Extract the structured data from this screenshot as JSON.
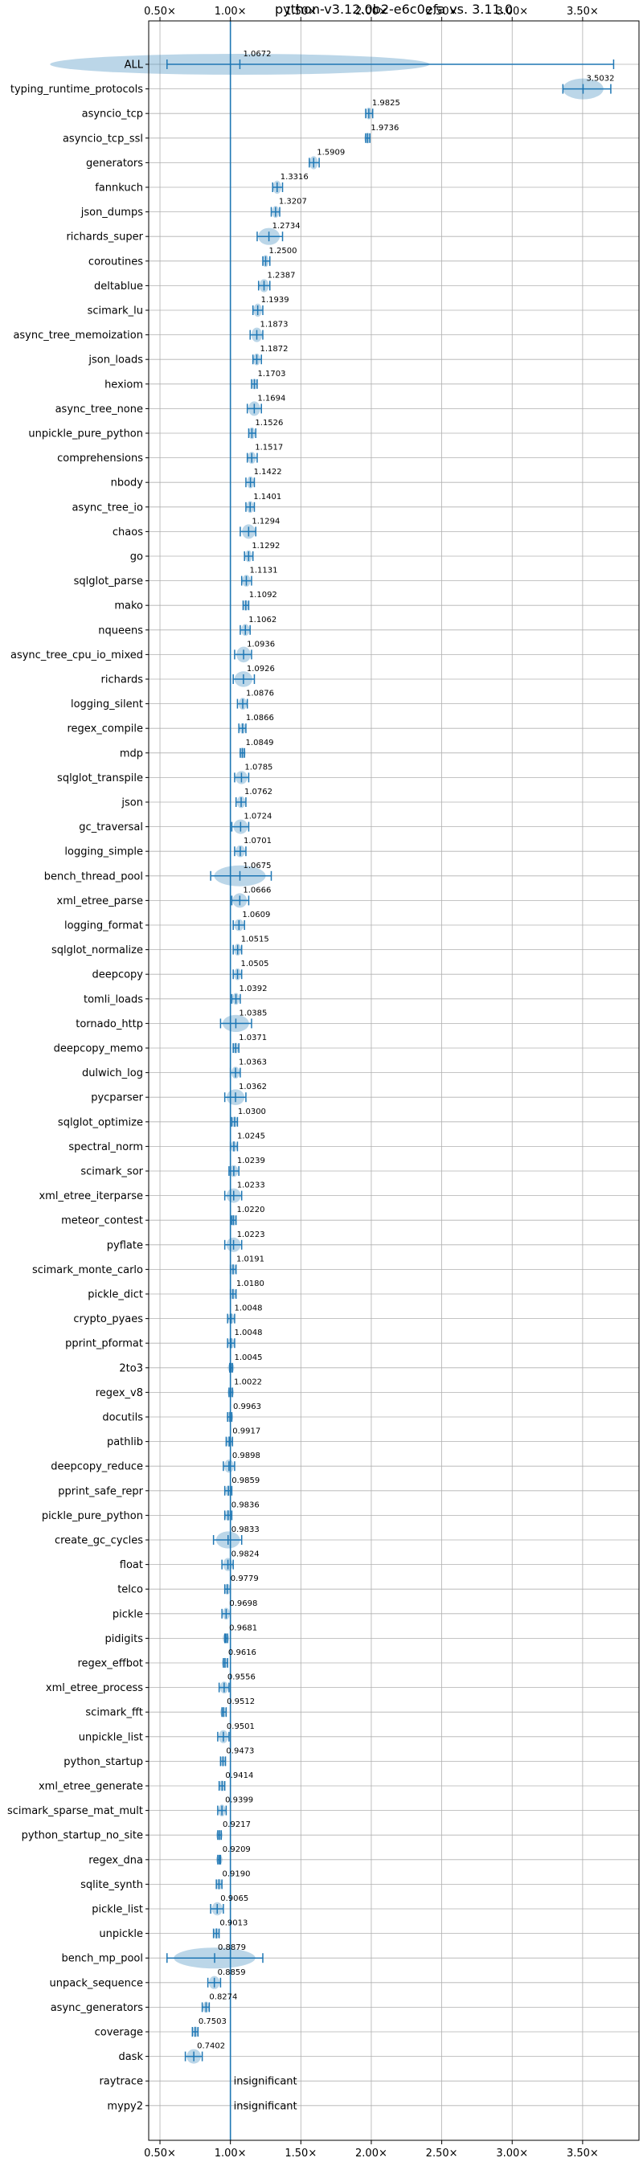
{
  "chart_data": {
    "type": "violin",
    "title": "python-v3.12.0b2-e6c0efa vs. 3.11.0",
    "xlim": [
      0.42,
      3.9
    ],
    "x_ticks": [
      0.5,
      1.0,
      1.5,
      2.0,
      2.5,
      3.0,
      3.5
    ],
    "x_tick_labels": [
      "0.50×",
      "1.00×",
      "1.50×",
      "2.00×",
      "2.50×",
      "3.00×",
      "3.50×"
    ],
    "reference": 1.0,
    "grid": true,
    "benchmarks": [
      {
        "name": "ALL",
        "value": 1.0672,
        "label": "1.0672",
        "low": 0.55,
        "high": 3.72,
        "spread": 0.12
      },
      {
        "name": "typing_runtime_protocols",
        "value": 3.5032,
        "label": "3.5032",
        "low": 3.36,
        "high": 3.7,
        "spread": 0.1
      },
      {
        "name": "asyncio_tcp",
        "value": 1.9825,
        "label": "1.9825",
        "low": 1.96,
        "high": 2.01,
        "spread": 0.03
      },
      {
        "name": "asyncio_tcp_ssl",
        "value": 1.9736,
        "label": "1.9736",
        "low": 1.96,
        "high": 1.99,
        "spread": 0.02
      },
      {
        "name": "generators",
        "value": 1.5909,
        "label": "1.5909",
        "low": 1.56,
        "high": 1.63,
        "spread": 0.04
      },
      {
        "name": "fannkuch",
        "value": 1.3316,
        "label": "1.3316",
        "low": 1.3,
        "high": 1.37,
        "spread": 0.04
      },
      {
        "name": "json_dumps",
        "value": 1.3207,
        "label": "1.3207",
        "low": 1.29,
        "high": 1.35,
        "spread": 0.03
      },
      {
        "name": "richards_super",
        "value": 1.2734,
        "label": "1.2734",
        "low": 1.19,
        "high": 1.37,
        "spread": 0.07
      },
      {
        "name": "coroutines",
        "value": 1.25,
        "label": "1.2500",
        "low": 1.23,
        "high": 1.28,
        "spread": 0.03
      },
      {
        "name": "deltablue",
        "value": 1.2387,
        "label": "1.2387",
        "low": 1.2,
        "high": 1.28,
        "spread": 0.04
      },
      {
        "name": "scimark_lu",
        "value": 1.1939,
        "label": "1.1939",
        "low": 1.16,
        "high": 1.23,
        "spread": 0.04
      },
      {
        "name": "async_tree_memoization",
        "value": 1.1873,
        "label": "1.1873",
        "low": 1.14,
        "high": 1.23,
        "spread": 0.05
      },
      {
        "name": "json_loads",
        "value": 1.1872,
        "label": "1.1872",
        "low": 1.16,
        "high": 1.22,
        "spread": 0.03
      },
      {
        "name": "hexiom",
        "value": 1.1703,
        "label": "1.1703",
        "low": 1.15,
        "high": 1.19,
        "spread": 0.02
      },
      {
        "name": "async_tree_none",
        "value": 1.1694,
        "label": "1.1694",
        "low": 1.12,
        "high": 1.22,
        "spread": 0.05
      },
      {
        "name": "unpickle_pure_python",
        "value": 1.1526,
        "label": "1.1526",
        "low": 1.13,
        "high": 1.18,
        "spread": 0.03
      },
      {
        "name": "comprehensions",
        "value": 1.1517,
        "label": "1.1517",
        "low": 1.12,
        "high": 1.19,
        "spread": 0.03
      },
      {
        "name": "nbody",
        "value": 1.1422,
        "label": "1.1422",
        "low": 1.11,
        "high": 1.17,
        "spread": 0.03
      },
      {
        "name": "async_tree_io",
        "value": 1.1401,
        "label": "1.1401",
        "low": 1.11,
        "high": 1.17,
        "spread": 0.03
      },
      {
        "name": "chaos",
        "value": 1.1294,
        "label": "1.1294",
        "low": 1.07,
        "high": 1.18,
        "spread": 0.05
      },
      {
        "name": "go",
        "value": 1.1292,
        "label": "1.1292",
        "low": 1.1,
        "high": 1.16,
        "spread": 0.03
      },
      {
        "name": "sqlglot_parse",
        "value": 1.1131,
        "label": "1.1131",
        "low": 1.08,
        "high": 1.15,
        "spread": 0.03
      },
      {
        "name": "mako",
        "value": 1.1092,
        "label": "1.1092",
        "low": 1.09,
        "high": 1.13,
        "spread": 0.02
      },
      {
        "name": "nqueens",
        "value": 1.1062,
        "label": "1.1062",
        "low": 1.07,
        "high": 1.14,
        "spread": 0.03
      },
      {
        "name": "async_tree_cpu_io_mixed",
        "value": 1.0936,
        "label": "1.0936",
        "low": 1.03,
        "high": 1.15,
        "spread": 0.06
      },
      {
        "name": "richards",
        "value": 1.0926,
        "label": "1.0926",
        "low": 1.02,
        "high": 1.17,
        "spread": 0.06
      },
      {
        "name": "logging_silent",
        "value": 1.0876,
        "label": "1.0876",
        "low": 1.05,
        "high": 1.12,
        "spread": 0.03
      },
      {
        "name": "regex_compile",
        "value": 1.0866,
        "label": "1.0866",
        "low": 1.06,
        "high": 1.11,
        "spread": 0.02
      },
      {
        "name": "mdp",
        "value": 1.0849,
        "label": "1.0849",
        "low": 1.07,
        "high": 1.1,
        "spread": 0.02
      },
      {
        "name": "sqlglot_transpile",
        "value": 1.0785,
        "label": "1.0785",
        "low": 1.03,
        "high": 1.13,
        "spread": 0.04
      },
      {
        "name": "json",
        "value": 1.0762,
        "label": "1.0762",
        "low": 1.04,
        "high": 1.11,
        "spread": 0.03
      },
      {
        "name": "gc_traversal",
        "value": 1.0724,
        "label": "1.0724",
        "low": 1.01,
        "high": 1.13,
        "spread": 0.05
      },
      {
        "name": "logging_simple",
        "value": 1.0701,
        "label": "1.0701",
        "low": 1.03,
        "high": 1.11,
        "spread": 0.03
      },
      {
        "name": "bench_thread_pool",
        "value": 1.0675,
        "label": "1.0675",
        "low": 0.86,
        "high": 1.29,
        "spread": 0.11
      },
      {
        "name": "xml_etree_parse",
        "value": 1.0666,
        "label": "1.0666",
        "low": 1.01,
        "high": 1.13,
        "spread": 0.05
      },
      {
        "name": "logging_format",
        "value": 1.0609,
        "label": "1.0609",
        "low": 1.02,
        "high": 1.1,
        "spread": 0.03
      },
      {
        "name": "sqlglot_normalize",
        "value": 1.0515,
        "label": "1.0515",
        "low": 1.02,
        "high": 1.08,
        "spread": 0.03
      },
      {
        "name": "deepcopy",
        "value": 1.0505,
        "label": "1.0505",
        "low": 1.02,
        "high": 1.08,
        "spread": 0.03
      },
      {
        "name": "tomli_loads",
        "value": 1.0392,
        "label": "1.0392",
        "low": 1.01,
        "high": 1.07,
        "spread": 0.03
      },
      {
        "name": "tornado_http",
        "value": 1.0385,
        "label": "1.0385",
        "low": 0.93,
        "high": 1.15,
        "spread": 0.07
      },
      {
        "name": "deepcopy_memo",
        "value": 1.0371,
        "label": "1.0371",
        "low": 1.02,
        "high": 1.06,
        "spread": 0.02
      },
      {
        "name": "dulwich_log",
        "value": 1.0363,
        "label": "1.0363",
        "low": 1.0,
        "high": 1.07,
        "spread": 0.03
      },
      {
        "name": "pycparser",
        "value": 1.0362,
        "label": "1.0362",
        "low": 0.96,
        "high": 1.11,
        "spread": 0.06
      },
      {
        "name": "sqlglot_optimize",
        "value": 1.03,
        "label": "1.0300",
        "low": 1.01,
        "high": 1.05,
        "spread": 0.02
      },
      {
        "name": "spectral_norm",
        "value": 1.0245,
        "label": "1.0245",
        "low": 1.0,
        "high": 1.05,
        "spread": 0.02
      },
      {
        "name": "scimark_sor",
        "value": 1.0239,
        "label": "1.0239",
        "low": 0.99,
        "high": 1.06,
        "spread": 0.03
      },
      {
        "name": "xml_etree_iterparse",
        "value": 1.0233,
        "label": "1.0233",
        "low": 0.96,
        "high": 1.08,
        "spread": 0.05
      },
      {
        "name": "meteor_contest",
        "value": 1.022,
        "label": "1.0220",
        "low": 1.01,
        "high": 1.04,
        "spread": 0.02
      },
      {
        "name": "pyflate",
        "value": 1.0223,
        "label": "1.0223",
        "low": 0.96,
        "high": 1.08,
        "spread": 0.05
      },
      {
        "name": "scimark_monte_carlo",
        "value": 1.0191,
        "label": "1.0191",
        "low": 1.0,
        "high": 1.04,
        "spread": 0.02
      },
      {
        "name": "pickle_dict",
        "value": 1.018,
        "label": "1.0180",
        "low": 1.0,
        "high": 1.04,
        "spread": 0.02
      },
      {
        "name": "crypto_pyaes",
        "value": 1.0048,
        "label": "1.0048",
        "low": 0.98,
        "high": 1.03,
        "spread": 0.02
      },
      {
        "name": "pprint_pformat",
        "value": 1.0048,
        "label": "1.0048",
        "low": 0.98,
        "high": 1.03,
        "spread": 0.02
      },
      {
        "name": "2to3",
        "value": 1.0045,
        "label": "1.0045",
        "low": 0.995,
        "high": 1.015,
        "spread": 0.01
      },
      {
        "name": "regex_v8",
        "value": 1.0022,
        "label": "1.0022",
        "low": 0.99,
        "high": 1.015,
        "spread": 0.01
      },
      {
        "name": "docutils",
        "value": 0.9963,
        "label": "0.9963",
        "low": 0.98,
        "high": 1.01,
        "spread": 0.02
      },
      {
        "name": "pathlib",
        "value": 0.9917,
        "label": "0.9917",
        "low": 0.97,
        "high": 1.015,
        "spread": 0.02
      },
      {
        "name": "deepcopy_reduce",
        "value": 0.9898,
        "label": "0.9898",
        "low": 0.95,
        "high": 1.03,
        "spread": 0.04
      },
      {
        "name": "pprint_safe_repr",
        "value": 0.9859,
        "label": "0.9859",
        "low": 0.96,
        "high": 1.01,
        "spread": 0.02
      },
      {
        "name": "pickle_pure_python",
        "value": 0.9836,
        "label": "0.9836",
        "low": 0.96,
        "high": 1.01,
        "spread": 0.02
      },
      {
        "name": "create_gc_cycles",
        "value": 0.9833,
        "label": "0.9833",
        "low": 0.88,
        "high": 1.08,
        "spread": 0.07
      },
      {
        "name": "float",
        "value": 0.9824,
        "label": "0.9824",
        "low": 0.94,
        "high": 1.02,
        "spread": 0.04
      },
      {
        "name": "telco",
        "value": 0.9779,
        "label": "0.9779",
        "low": 0.96,
        "high": 1.0,
        "spread": 0.02
      },
      {
        "name": "pickle",
        "value": 0.9698,
        "label": "0.9698",
        "low": 0.94,
        "high": 1.0,
        "spread": 0.03
      },
      {
        "name": "pidigits",
        "value": 0.9681,
        "label": "0.9681",
        "low": 0.96,
        "high": 0.98,
        "spread": 0.01
      },
      {
        "name": "regex_effbot",
        "value": 0.9616,
        "label": "0.9616",
        "low": 0.95,
        "high": 0.98,
        "spread": 0.015
      },
      {
        "name": "xml_etree_process",
        "value": 0.9556,
        "label": "0.9556",
        "low": 0.92,
        "high": 0.99,
        "spread": 0.03
      },
      {
        "name": "scimark_fft",
        "value": 0.9512,
        "label": "0.9512",
        "low": 0.94,
        "high": 0.97,
        "spread": 0.015
      },
      {
        "name": "unpickle_list",
        "value": 0.9501,
        "label": "0.9501",
        "low": 0.91,
        "high": 0.99,
        "spread": 0.04
      },
      {
        "name": "python_startup",
        "value": 0.9473,
        "label": "0.9473",
        "low": 0.93,
        "high": 0.965,
        "spread": 0.015
      },
      {
        "name": "xml_etree_generate",
        "value": 0.9414,
        "label": "0.9414",
        "low": 0.92,
        "high": 0.96,
        "spread": 0.02
      },
      {
        "name": "scimark_sparse_mat_mult",
        "value": 0.9399,
        "label": "0.9399",
        "low": 0.91,
        "high": 0.97,
        "spread": 0.03
      },
      {
        "name": "python_startup_no_site",
        "value": 0.9217,
        "label": "0.9217",
        "low": 0.91,
        "high": 0.935,
        "spread": 0.015
      },
      {
        "name": "regex_dna",
        "value": 0.9209,
        "label": "0.9209",
        "low": 0.91,
        "high": 0.93,
        "spread": 0.01
      },
      {
        "name": "sqlite_synth",
        "value": 0.919,
        "label": "0.9190",
        "low": 0.9,
        "high": 0.94,
        "spread": 0.02
      },
      {
        "name": "pickle_list",
        "value": 0.9065,
        "label": "0.9065",
        "low": 0.86,
        "high": 0.95,
        "spread": 0.04
      },
      {
        "name": "unpickle",
        "value": 0.9013,
        "label": "0.9013",
        "low": 0.88,
        "high": 0.92,
        "spread": 0.02
      },
      {
        "name": "bench_mp_pool",
        "value": 0.8879,
        "label": "0.8879",
        "low": 0.55,
        "high": 1.23,
        "spread": 0.16
      },
      {
        "name": "unpack_sequence",
        "value": 0.8859,
        "label": "0.8859",
        "low": 0.84,
        "high": 0.93,
        "spread": 0.04
      },
      {
        "name": "async_generators",
        "value": 0.8274,
        "label": "0.8274",
        "low": 0.8,
        "high": 0.85,
        "spread": 0.025
      },
      {
        "name": "coverage",
        "value": 0.7503,
        "label": "0.7503",
        "low": 0.73,
        "high": 0.77,
        "spread": 0.02
      },
      {
        "name": "dask",
        "value": 0.7402,
        "label": "0.7402",
        "low": 0.68,
        "high": 0.8,
        "spread": 0.05
      },
      {
        "name": "raytrace",
        "value": null,
        "label": "insignificant"
      },
      {
        "name": "mypy2",
        "value": null,
        "label": "insignificant"
      }
    ]
  }
}
